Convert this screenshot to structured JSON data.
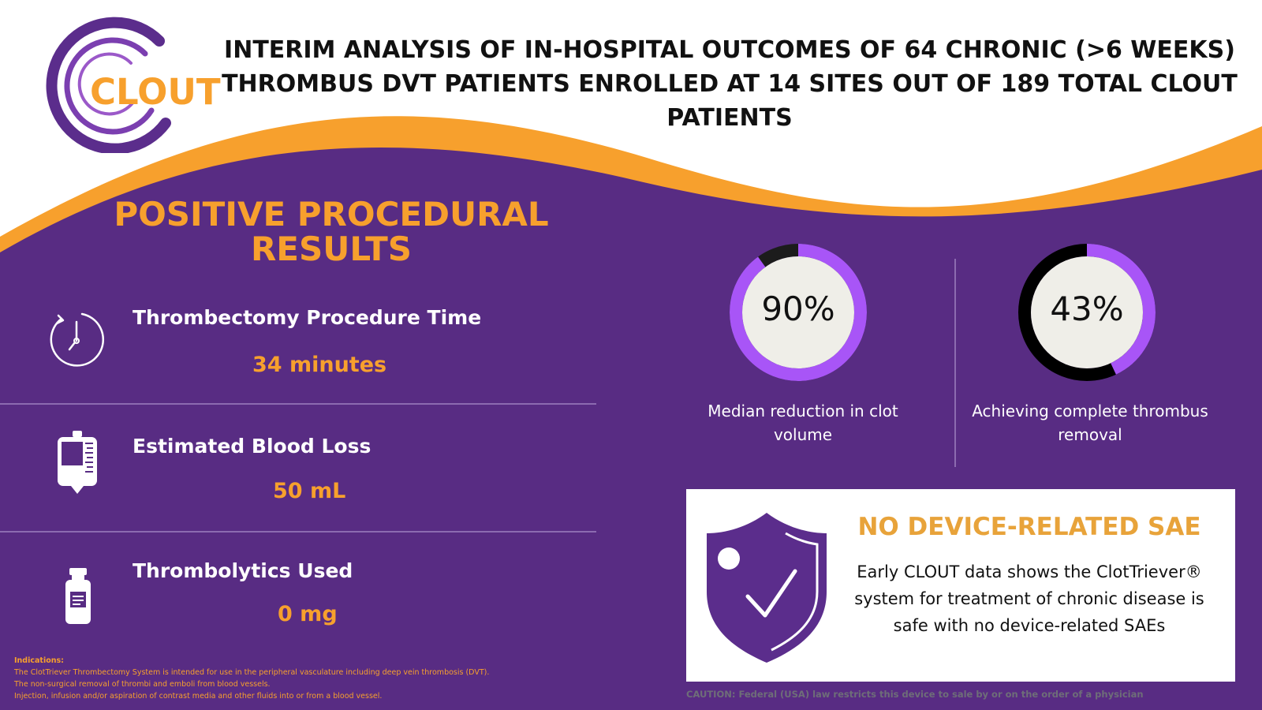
{
  "colors": {
    "purple": "#582c83",
    "violet": "#a855f7",
    "orange": "#f7a02d",
    "white": "#ffffff"
  },
  "logo": {
    "text": "CLOUT"
  },
  "title": "INTERIM ANALYSIS OF IN-HOSPITAL OUTCOMES OF 64 CHRONIC (>6 WEEKS) THROMBUS DVT PATIENTS ENROLLED AT 14 SITES OUT OF 189 TOTAL CLOUT PATIENTS",
  "section": {
    "title_line1": "POSITIVE PROCEDURAL",
    "title_line2": "RESULTS"
  },
  "metrics": [
    {
      "label": "Thrombectomy Procedure Time",
      "value": "34 minutes",
      "icon": "stopwatch-icon"
    },
    {
      "label": "Estimated Blood Loss",
      "value": "50 mL",
      "icon": "iv-bag-icon"
    },
    {
      "label": "Thrombolytics Used",
      "value": "0 mg",
      "icon": "vial-icon"
    }
  ],
  "rings": [
    {
      "percent": 90,
      "value_text": "90%",
      "caption_line1": "Median reduction in clot",
      "caption_line2": "volume"
    },
    {
      "percent": 43,
      "value_text": "43%",
      "caption_line1": "Achieving complete thrombus",
      "caption_line2": "removal"
    }
  ],
  "sae": {
    "title": "NO DEVICE-RELATED SAE",
    "line1": "Early CLOUT data shows the ClotTriever®",
    "line2": "system for treatment of chronic disease is",
    "line3": "safe with no device-related SAEs",
    "icon": "shield-check-icon"
  },
  "indications": {
    "heading": "Indications:",
    "lines": [
      "The ClotTriever Thrombectomy System is intended for use in the peripheral vasculature including deep vein thrombosis (DVT).",
      "The non-surgical removal of thrombi and emboli from blood vessels.",
      "Injection, infusion and/or aspiration of contrast media and other fluids into or from a blood vessel."
    ]
  },
  "caution": "CAUTION: Federal (USA) law restricts this device to sale by or on the order of a physician"
}
